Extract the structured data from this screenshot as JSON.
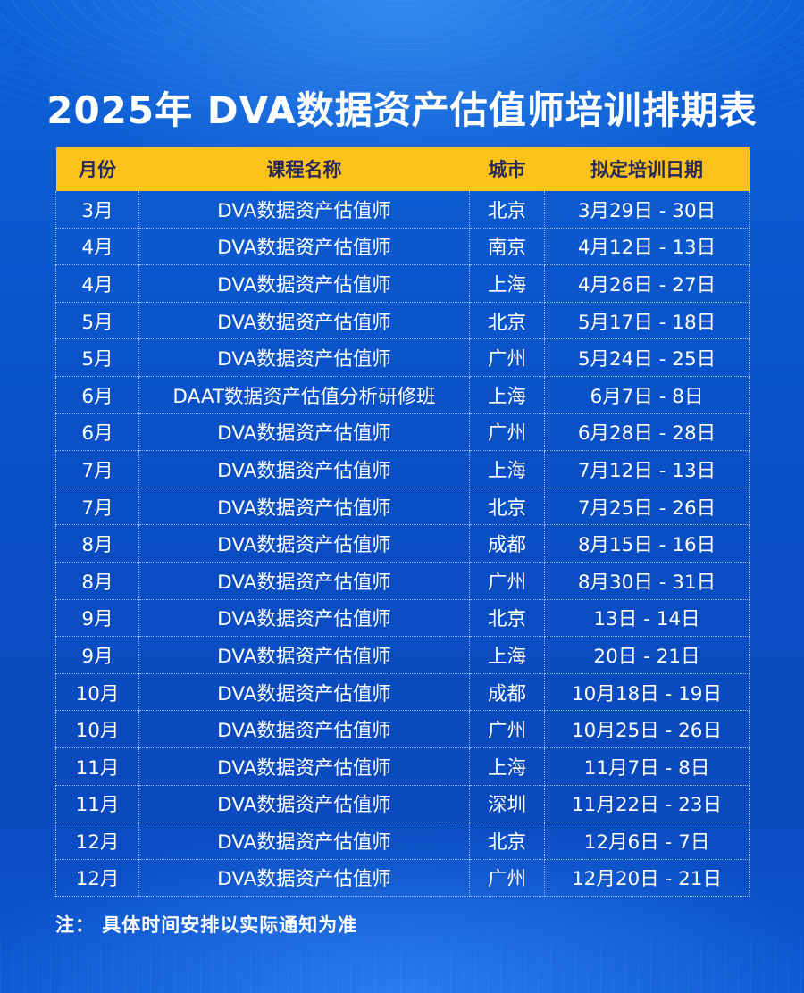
{
  "title": "2025年 DVA数据资产估值师培训排期表",
  "table": {
    "headers": [
      "月份",
      "课程名称",
      "城市",
      "拟定培训日期"
    ],
    "rows": [
      [
        "3月",
        "DVA数据资产估值师",
        "北京",
        "3月29日 - 30日"
      ],
      [
        "4月",
        "DVA数据资产估值师",
        "南京",
        "4月12日 - 13日"
      ],
      [
        "4月",
        "DVA数据资产估值师",
        "上海",
        "4月26日 - 27日"
      ],
      [
        "5月",
        "DVA数据资产估值师",
        "北京",
        "5月17日 - 18日"
      ],
      [
        "5月",
        "DVA数据资产估值师",
        "广州",
        "5月24日 - 25日"
      ],
      [
        "6月",
        "DAAT数据资产估值分析研修班",
        "上海",
        "6月7日 - 8日"
      ],
      [
        "6月",
        "DVA数据资产估值师",
        "广州",
        "6月28日 - 28日"
      ],
      [
        "7月",
        "DVA数据资产估值师",
        "上海",
        "7月12日 - 13日"
      ],
      [
        "7月",
        "DVA数据资产估值师",
        "北京",
        "7月25日 - 26日"
      ],
      [
        "8月",
        "DVA数据资产估值师",
        "成都",
        "8月15日 - 16日"
      ],
      [
        "8月",
        "DVA数据资产估值师",
        "广州",
        "8月30日 - 31日"
      ],
      [
        "9月",
        "DVA数据资产估值师",
        "北京",
        "13日 - 14日"
      ],
      [
        "9月",
        "DVA数据资产估值师",
        "上海",
        "20日 - 21日"
      ],
      [
        "10月",
        "DVA数据资产估值师",
        "成都",
        "10月18日 - 19日"
      ],
      [
        "10月",
        "DVA数据资产估值师",
        "广州",
        "10月25日 - 26日"
      ],
      [
        "11月",
        "DVA数据资产估值师",
        "上海",
        "11月7日 - 8日"
      ],
      [
        "11月",
        "DVA数据资产估值师",
        "深圳",
        "11月22日 - 23日"
      ],
      [
        "12月",
        "DVA数据资产估值师",
        "北京",
        "12月6日 - 7日"
      ],
      [
        "12月",
        "DVA数据资产估值师",
        "广州",
        "12月20日 - 21日"
      ]
    ]
  },
  "note": "注：  具体时间安排以实际通知为准",
  "colors": {
    "background": "#0a4fc6",
    "header_bg": "#fbc21a",
    "header_text": "#2a2a5a",
    "text": "#ffffff"
  }
}
